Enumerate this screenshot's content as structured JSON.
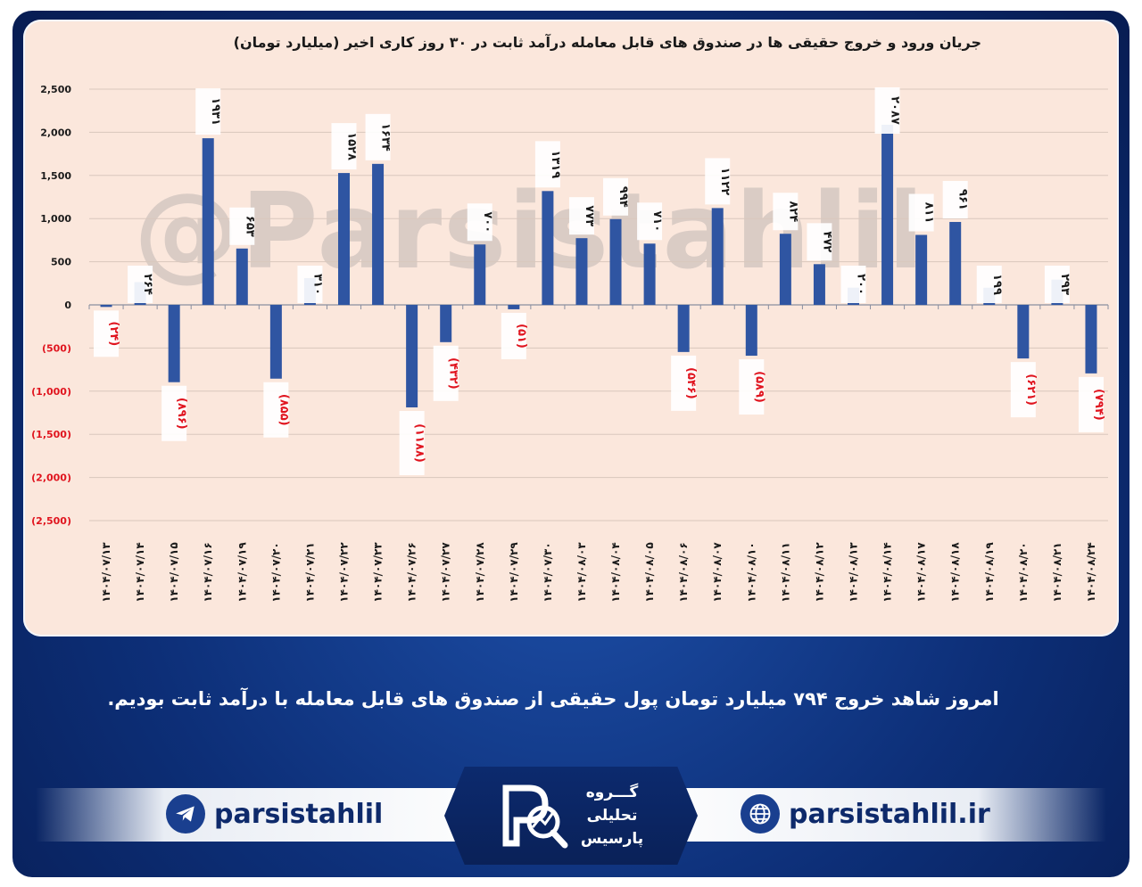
{
  "header": {
    "title": "جریان ورود و خروج حقیقی ها در صندوق های قابل معامله درآمد ثابت در ۳۰ روز کاری اخیر (میلیارد تومان)"
  },
  "watermark": "@Parsistahlil",
  "headline": "امروز شاهد خروج ۷۹۴ میلیارد تومان پول حقیقی از صندوق های قابل معامله با درآمد ثابت بودیم.",
  "footer": {
    "telegram": "parsistahlil",
    "website": "parsistahlil.ir",
    "logo_line1": "گـــروه",
    "logo_line2": "تحلیلی",
    "logo_line3": "پارسیس"
  },
  "colors": {
    "bar": "#2f55a2",
    "negative_label": "#e0141e",
    "positive_label": "#1a1a1a",
    "panel": "#fbe7dc"
  },
  "chart_data": {
    "type": "bar",
    "ylim": [
      -2500,
      2500
    ],
    "y_ticks": [
      {
        "value": 2500,
        "label": "2,500"
      },
      {
        "value": 2000,
        "label": "2,000"
      },
      {
        "value": 1500,
        "label": "1,500"
      },
      {
        "value": 1000,
        "label": "1,000"
      },
      {
        "value": 500,
        "label": "500"
      },
      {
        "value": 0,
        "label": "0"
      },
      {
        "value": -500,
        "label": "(500)"
      },
      {
        "value": -1000,
        "label": "(1,000)"
      },
      {
        "value": -1500,
        "label": "(1,500)"
      },
      {
        "value": -2000,
        "label": "(2,000)"
      },
      {
        "value": -2500,
        "label": "(2,500)"
      }
    ],
    "grid": true,
    "categories": [
      "۱۴۰۴/۰۷/۱۳",
      "۱۴۰۴/۰۷/۱۴",
      "۱۴۰۴/۰۷/۱۵",
      "۱۴۰۴/۰۷/۱۶",
      "۱۴۰۴/۰۷/۱۹",
      "۱۴۰۴/۰۷/۲۰",
      "۱۴۰۴/۰۷/۲۱",
      "۱۴۰۴/۰۷/۲۲",
      "۱۴۰۴/۰۷/۲۳",
      "۱۴۰۴/۰۷/۲۶",
      "۱۴۰۴/۰۷/۲۷",
      "۱۴۰۴/۰۷/۲۸",
      "۱۴۰۴/۰۷/۲۹",
      "۱۴۰۴/۰۷/۳۰",
      "۱۴۰۴/۰۸/۰۳",
      "۱۴۰۴/۰۸/۰۴",
      "۱۴۰۴/۰۸/۰۵",
      "۱۴۰۴/۰۸/۰۶",
      "۱۴۰۴/۰۸/۰۷",
      "۱۴۰۴/۰۸/۱۰",
      "۱۴۰۴/۰۸/۱۱",
      "۱۴۰۴/۰۸/۱۲",
      "۱۴۰۴/۰۸/۱۳",
      "۱۴۰۴/۰۸/۱۴",
      "۱۴۰۴/۰۸/۱۷",
      "۱۴۰۴/۰۸/۱۸",
      "۱۴۰۴/۰۸/۱۹",
      "۱۴۰۴/۰۸/۲۰",
      "۱۴۰۴/۰۸/۲۱",
      "۱۴۰۴/۰۸/۲۴"
    ],
    "values": [
      -24,
      264,
      -896,
      1931,
      653,
      -855,
      310,
      1528,
      1634,
      -1188,
      -432,
      700,
      -51,
      1319,
      773,
      994,
      710,
      -546,
      1122,
      -589,
      824,
      472,
      200,
      2087,
      811,
      961,
      199,
      -621,
      293,
      -794
    ],
    "data_labels": [
      "(۲۴)",
      "۲۶۴",
      "(۸۹۶)",
      "۱۹۳۱",
      "۶۵۳",
      "(۸۵۵)",
      "۳۱۰",
      "۱۵۲۸",
      "۱۶۳۴",
      "(۱۱۸۸)",
      "(۴۳۲)",
      "۷۰۰",
      "(۵۱)",
      "۱۳۱۹",
      "۷۷۳",
      "۹۹۴",
      "۷۱۰",
      "(۵۴۶)",
      "۱۱۲۲",
      "(۵۸۹)",
      "۸۲۴",
      "۴۷۲",
      "۲۰۰",
      "۲۰۸۷",
      "۸۱۱",
      "۹۶۱",
      "۱۹۹",
      "(۶۲۱)",
      "۲۹۳",
      "(۷۹۴)"
    ]
  }
}
